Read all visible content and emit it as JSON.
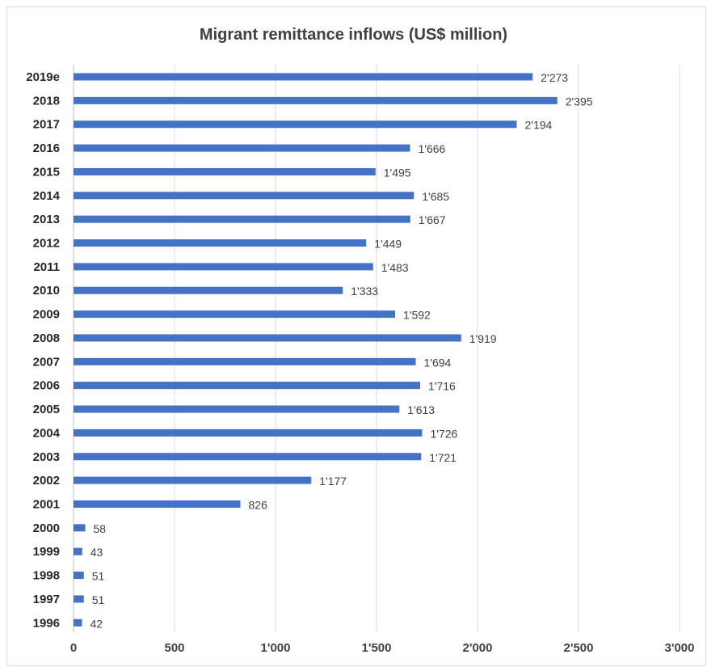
{
  "chart_data": {
    "type": "bar",
    "orientation": "horizontal",
    "title": "Migrant remittance inflows (US$ million)",
    "xlabel": "",
    "ylabel": "",
    "xlim": [
      0,
      3000
    ],
    "xticks": [
      0,
      500,
      1000,
      1500,
      2000,
      2500,
      3000
    ],
    "xtick_labels": [
      "0",
      "500",
      "1'000",
      "1'500",
      "2'000",
      "2'500",
      "3'000"
    ],
    "grid": "vertical",
    "bar_color": "#4472c4",
    "categories": [
      "2019e",
      "2018",
      "2017",
      "2016",
      "2015",
      "2014",
      "2013",
      "2012",
      "2011",
      "2010",
      "2009",
      "2008",
      "2007",
      "2006",
      "2005",
      "2004",
      "2003",
      "2002",
      "2001",
      "2000",
      "1999",
      "1998",
      "1997",
      "1996"
    ],
    "values": [
      2273,
      2395,
      2194,
      1666,
      1495,
      1685,
      1667,
      1449,
      1483,
      1333,
      1592,
      1919,
      1694,
      1716,
      1613,
      1726,
      1721,
      1177,
      826,
      58,
      43,
      51,
      51,
      42
    ],
    "value_labels": [
      "2'273",
      "2'395",
      "2'194",
      "1'666",
      "1'495",
      "1'685",
      "1'667",
      "1'449",
      "1'483",
      "1'333",
      "1'592",
      "1'919",
      "1'694",
      "1'716",
      "1'613",
      "1'726",
      "1'721",
      "1'177",
      "826",
      "58",
      "43",
      "51",
      "51",
      "42"
    ]
  }
}
